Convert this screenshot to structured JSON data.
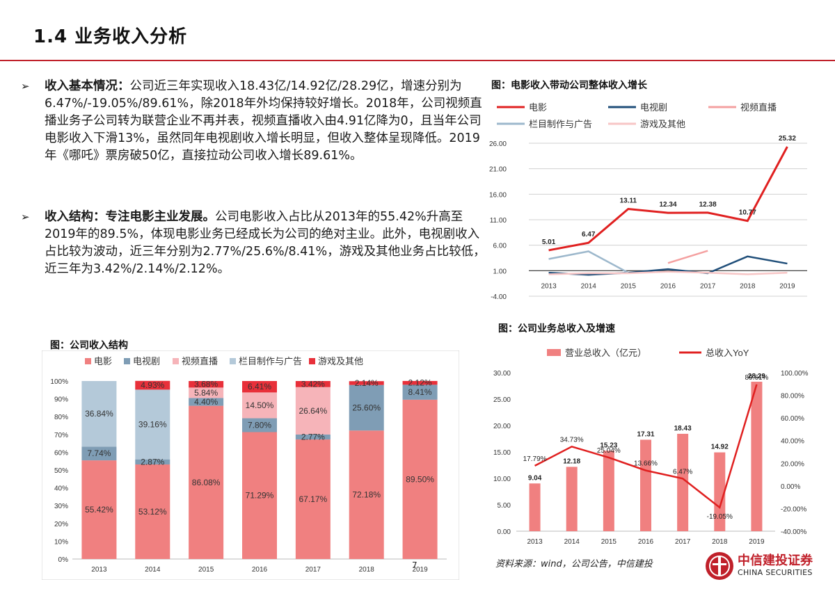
{
  "header": {
    "title": "1.4 业务收入分析"
  },
  "paragraphs": [
    {
      "bullet": "➢",
      "lead": "收入基本情况：",
      "text": "公司近三年实现收入18.43亿/14.92亿/28.29亿，增速分别为6.47%/-19.05%/89.61%，除2018年外均保持较好增长。2018年，公司视频直播业务子公司转为联营企业不再并表，视频直播收入由4.91亿降为0，且当年公司电影收入下滑13%，虽然同年电视剧收入增长明显，但收入整体呈现降低。2019年《哪吒》票房破50亿，直接拉动公司收入增长89.61%。"
    },
    {
      "bullet": "➢",
      "lead": "收入结构：专注电影主业发展。",
      "text": "公司电影收入占比从2013年的55.42%升高至2019年的89.5%，体现电影业务已经成长为公司的绝对主业。此外，电视剧收入占比较为波动，近三年分别为2.77%/25.6%/8.41%，游戏及其他业务占比较低，近三年为3.42%/2.14%/2.12%。"
    }
  ],
  "figures": {
    "fig1_title": "图：电影收入带动公司整体收入增长",
    "fig2_title": "图：公司收入结构",
    "fig3_title": "图：公司业务总收入及增速"
  },
  "chart_data": [
    {
      "type": "line",
      "x": [
        "2013",
        "2014",
        "2015",
        "2016",
        "2017",
        "2018",
        "2019"
      ],
      "yticks": [
        "26.00",
        "21.00",
        "16.00",
        "11.00",
        "6.00",
        "1.00",
        "-4.00"
      ],
      "ylim": [
        -4,
        26
      ],
      "series": [
        {
          "name": "电影",
          "color": "#e02020",
          "values": [
            5.01,
            6.47,
            13.11,
            12.34,
            12.38,
            10.77,
            25.32
          ],
          "labels": [
            "5.01",
            "6.47",
            "13.11",
            "12.34",
            "12.38",
            "10.77",
            "25.32"
          ]
        },
        {
          "name": "电视剧",
          "color": "#1f4e79",
          "values": [
            0.6,
            0.2,
            0.6,
            1.3,
            0.5,
            3.8,
            2.4
          ]
        },
        {
          "name": "视频直播",
          "color": "#f4a0a0",
          "values": [
            null,
            null,
            null,
            2.5,
            4.91,
            null,
            null
          ]
        },
        {
          "name": "栏目制作与广告",
          "color": "#9db8cc",
          "values": [
            3.3,
            4.8,
            0.6,
            null,
            null,
            null,
            null
          ]
        },
        {
          "name": "游戏及其他",
          "color": "#f7c6c6",
          "values": [
            0.3,
            0.5,
            0.5,
            0.8,
            0.6,
            0.3,
            0.6
          ]
        }
      ]
    },
    {
      "type": "bar",
      "stacked": true,
      "categories": [
        "2013",
        "2014",
        "2015",
        "2016",
        "2017",
        "2018",
        "2019"
      ],
      "yticks": [
        "100%",
        "90%",
        "80%",
        "70%",
        "60%",
        "50%",
        "40%",
        "30%",
        "20%",
        "10%",
        "0%"
      ],
      "ylim": [
        0,
        100
      ],
      "series": [
        {
          "name": "电影",
          "color": "#f08080",
          "values": [
            55.42,
            53.12,
            86.08,
            71.29,
            67.17,
            72.18,
            89.5
          ],
          "labels": [
            "55.42%",
            "53.12%",
            "86.08%",
            "71.29%",
            "67.17%",
            "72.18%",
            "89.50%"
          ]
        },
        {
          "name": "电视剧",
          "color": "#7f9db5",
          "values": [
            7.74,
            2.87,
            4.4,
            7.8,
            2.77,
            25.6,
            8.41
          ],
          "labels": [
            "7.74%",
            "2.87%",
            "4.40%",
            "7.80%",
            "2.77%",
            "25.60%",
            "8.41%"
          ]
        },
        {
          "name": "视频直播",
          "color": "#f6b4b9",
          "values": [
            0,
            0,
            5.84,
            14.5,
            26.64,
            0,
            0
          ],
          "labels": [
            "",
            "",
            "5.84%",
            "14.50%",
            "26.64%",
            "",
            ""
          ]
        },
        {
          "name": "栏目制作与广告",
          "color": "#b4c9d9",
          "values": [
            36.84,
            39.16,
            0,
            0,
            0,
            0,
            0
          ],
          "labels": [
            "36.84%",
            "39.16%",
            "",
            "",
            "",
            "",
            ""
          ]
        },
        {
          "name": "游戏及其他",
          "color": "#e8303a",
          "values": [
            0,
            4.93,
            3.68,
            6.41,
            3.42,
            2.14,
            2.12
          ],
          "labels": [
            "",
            "4.93%",
            "3.68%",
            "6.41%",
            "3.42%",
            "2.14%",
            "2.12%"
          ]
        }
      ]
    },
    {
      "type": "bar",
      "categories": [
        "2013",
        "2014",
        "2015",
        "2016",
        "2017",
        "2018",
        "2019"
      ],
      "yticks_left": [
        "30.00",
        "25.00",
        "20.00",
        "15.00",
        "10.00",
        "5.00",
        "0.00"
      ],
      "yticks_right": [
        "100.00%",
        "80.00%",
        "60.00%",
        "40.00%",
        "20.00%",
        "0.00%",
        "-20.00%",
        "-40.00%"
      ],
      "ylim_left": [
        0,
        30
      ],
      "ylim_right": [
        -40,
        100
      ],
      "series": [
        {
          "name": "营业总收入（亿元）",
          "color": "#f08080",
          "axis": "left",
          "values": [
            9.04,
            12.18,
            15.23,
            17.31,
            18.43,
            14.92,
            28.29
          ],
          "labels": [
            "9.04",
            "12.18",
            "15.23",
            "17.31",
            "18.43",
            "14.92",
            "28.29"
          ]
        },
        {
          "name": "总收入YoY",
          "color": "#e02020",
          "axis": "right",
          "type": "line",
          "values": [
            17.79,
            34.73,
            25.04,
            13.66,
            6.47,
            -19.05,
            89.61
          ],
          "labels": [
            "17.79%",
            "34.73%",
            "25.04%",
            "13.66%",
            "6.47%",
            "-19.05%",
            "89.61%"
          ]
        }
      ]
    }
  ],
  "footer": {
    "source": "资料来源：wind，公司公告，中信建投",
    "logo_cn": "中信建投证券",
    "logo_en": "CHINA SECURITIES",
    "page_number": "7"
  }
}
